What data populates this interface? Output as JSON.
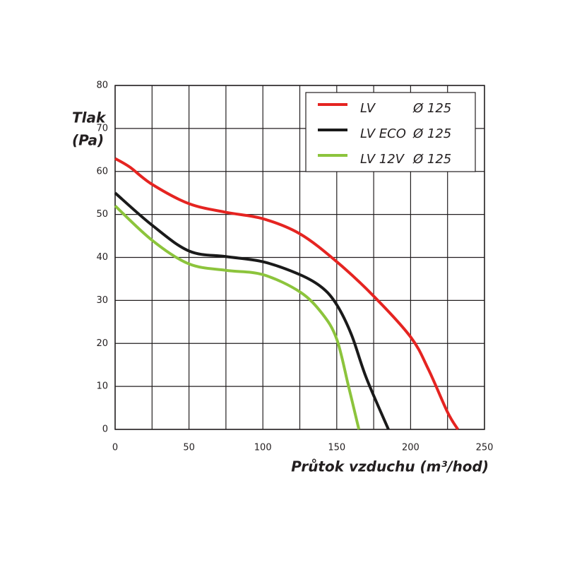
{
  "chart_data": {
    "type": "line",
    "y_label": [
      "Tlak",
      "(Pa)"
    ],
    "x_label": "Průtok vzduchu (m³/hod)",
    "xlim": [
      0,
      250
    ],
    "xticks": [
      0,
      50,
      100,
      150,
      200,
      250
    ],
    "xgrid": [
      0,
      25,
      50,
      75,
      100,
      125,
      150,
      175,
      200,
      225,
      250
    ],
    "ylim": [
      0,
      80
    ],
    "yticks": [
      0,
      10,
      20,
      30,
      40,
      50,
      60,
      70,
      80
    ],
    "grid": true,
    "legend": "top-right",
    "series": [
      {
        "name": "LV",
        "diameter": "Ø 125",
        "color": "#e52421",
        "x": [
          0,
          10,
          25,
          50,
          75,
          100,
          125,
          150,
          175,
          200,
          212,
          225,
          232
        ],
        "values": [
          63,
          61,
          57,
          52.5,
          50.5,
          49,
          45.5,
          39,
          31,
          21.5,
          14,
          4,
          0
        ]
      },
      {
        "name": "LV ECO",
        "diameter": "Ø 125",
        "color": "#1a1a1a",
        "x": [
          0,
          25,
          50,
          75,
          100,
          125,
          140,
          150,
          160,
          170,
          185
        ],
        "values": [
          55,
          47.5,
          41.5,
          40.2,
          39,
          36,
          33,
          29,
          22,
          12,
          0
        ]
      },
      {
        "name": "LV 12V",
        "diameter": "Ø 125",
        "color": "#8cc43c",
        "x": [
          0,
          25,
          50,
          75,
          100,
          125,
          140,
          150,
          158,
          165
        ],
        "values": [
          52,
          44,
          38.5,
          37,
          36,
          32,
          27,
          21,
          10,
          0
        ]
      }
    ]
  }
}
